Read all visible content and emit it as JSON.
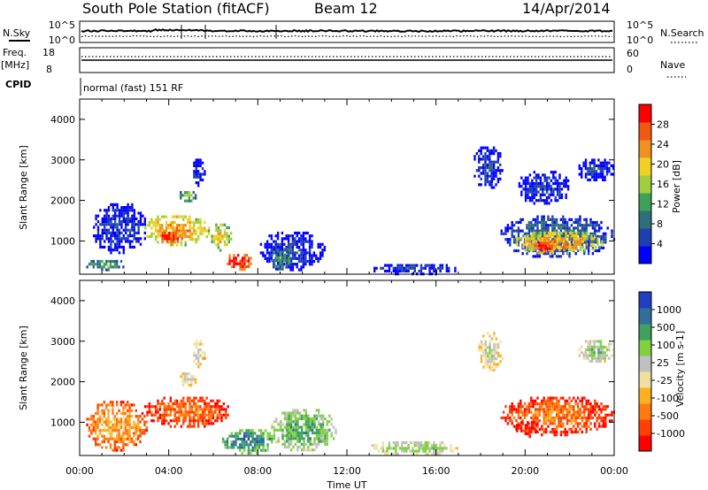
{
  "header": {
    "station": "South Pole Station (fitACF)",
    "beam": "Beam 12",
    "date": "14/Apr/2014"
  },
  "noise_panel": {
    "left_label": "N.Sky",
    "right_label": "N.Search",
    "left_ticks": [
      "10^5",
      "10^0"
    ],
    "right_ticks": [
      "10^5",
      "10^0"
    ]
  },
  "freq_panel": {
    "left_label_line1": "Freq.",
    "left_label_line2": "[MHz]",
    "right_label": "Nave",
    "left_ticks": [
      "18",
      "8"
    ],
    "right_ticks": [
      "60",
      "0"
    ]
  },
  "cpid": {
    "label": "CPID",
    "mode": "normal (fast) 151 RF"
  },
  "x_axis": {
    "label": "Time UT",
    "ticks": [
      "00:00",
      "04:00",
      "08:00",
      "12:00",
      "16:00",
      "20:00",
      "00:00"
    ]
  },
  "chart_data": [
    {
      "type": "heatmap",
      "panel": "power",
      "xlabel": "Time UT",
      "ylabel": "Slant Range [km]",
      "xlim_hours": [
        0,
        24
      ],
      "ylim_km": [
        180,
        4500
      ],
      "y_ticks": [
        1000,
        2000,
        3000,
        4000
      ],
      "colorbar": {
        "label": "Power [dB]",
        "ticks": [
          "28",
          "24",
          "20",
          "16",
          "12",
          "8",
          "4"
        ],
        "colors": [
          "#0000ff",
          "#1f3fb0",
          "#2f6f7a",
          "#3fa05a",
          "#9fcf3f",
          "#f0d020",
          "#f09020",
          "#f05a10",
          "#ff0000"
        ]
      },
      "regions": [
        {
          "t0": 2.8,
          "t1": 5.8,
          "r0": 900,
          "r1": 1700,
          "level": 6
        },
        {
          "t0": 3.5,
          "t1": 4.6,
          "r0": 950,
          "r1": 1300,
          "level": 8
        },
        {
          "t0": 5.8,
          "t1": 6.8,
          "r0": 800,
          "r1": 1500,
          "level": 5
        },
        {
          "t0": 6.5,
          "t1": 7.7,
          "r0": 300,
          "r1": 750,
          "level": 8
        },
        {
          "t0": 0.2,
          "t1": 2.0,
          "r0": 300,
          "r1": 600,
          "level": 3
        },
        {
          "t0": 0.5,
          "t1": 3.0,
          "r0": 700,
          "r1": 2000,
          "level": 1
        },
        {
          "t0": 4.4,
          "t1": 5.2,
          "r0": 2000,
          "r1": 2300,
          "level": 4
        },
        {
          "t0": 5.0,
          "t1": 5.6,
          "r0": 2400,
          "r1": 3100,
          "level": 1
        },
        {
          "t0": 8.0,
          "t1": 11.0,
          "r0": 300,
          "r1": 1300,
          "level": 1
        },
        {
          "t0": 8.5,
          "t1": 9.5,
          "r0": 300,
          "r1": 900,
          "level": 3
        },
        {
          "t0": 17.6,
          "t1": 19.0,
          "r0": 2300,
          "r1": 3400,
          "level": 1
        },
        {
          "t0": 18.8,
          "t1": 24.0,
          "r0": 600,
          "r1": 1700,
          "level": 2
        },
        {
          "t0": 19.5,
          "t1": 23.5,
          "r0": 700,
          "r1": 1300,
          "level": 6
        },
        {
          "t0": 20.3,
          "t1": 21.3,
          "r0": 750,
          "r1": 1050,
          "level": 8
        },
        {
          "t0": 22.3,
          "t1": 24.0,
          "r0": 2500,
          "r1": 3100,
          "level": 1
        },
        {
          "t0": 19.6,
          "t1": 22.0,
          "r0": 1900,
          "r1": 2800,
          "level": 1
        },
        {
          "t0": 13.0,
          "t1": 17.0,
          "r0": 200,
          "r1": 500,
          "level": 1
        }
      ]
    },
    {
      "type": "heatmap",
      "panel": "velocity",
      "xlabel": "Time UT",
      "ylabel": "Slant Range [km]",
      "xlim_hours": [
        0,
        24
      ],
      "ylim_km": [
        180,
        4500
      ],
      "y_ticks": [
        1000,
        2000,
        3000,
        4000
      ],
      "colorbar": {
        "label": "Velocity [m s-1]",
        "ticks": [
          "1000",
          "500",
          "100",
          "25",
          "-25",
          "-100",
          "-500",
          "-1000"
        ],
        "colors": [
          "#ff0000",
          "#ff4000",
          "#ff7a10",
          "#ffb020",
          "#f0e0a0",
          "#c0c0c0",
          "#80d040",
          "#40a060",
          "#2f6f9a",
          "#2040c0"
        ]
      },
      "regions": [
        {
          "t0": 2.8,
          "t1": 6.8,
          "r0": 900,
          "r1": 1700,
          "level": 2
        },
        {
          "t0": 0.2,
          "t1": 3.0,
          "r0": 300,
          "r1": 1600,
          "level": 3
        },
        {
          "t0": 4.4,
          "t1": 5.2,
          "r0": 1900,
          "r1": 2300,
          "level": 5
        },
        {
          "t0": 6.3,
          "t1": 8.8,
          "r0": 250,
          "r1": 900,
          "level": 8
        },
        {
          "t0": 8.5,
          "t1": 11.5,
          "r0": 300,
          "r1": 1400,
          "level": 7
        },
        {
          "t0": 5.0,
          "t1": 5.6,
          "r0": 2400,
          "r1": 3100,
          "level": 5
        },
        {
          "t0": 17.8,
          "t1": 19.0,
          "r0": 2300,
          "r1": 3300,
          "level": 5
        },
        {
          "t0": 18.8,
          "t1": 24.0,
          "r0": 700,
          "r1": 1700,
          "level": 2
        },
        {
          "t0": 19.5,
          "t1": 20.5,
          "r0": 650,
          "r1": 1100,
          "level": 1
        },
        {
          "t0": 22.3,
          "t1": 24.0,
          "r0": 2500,
          "r1": 3100,
          "level": 6
        },
        {
          "t0": 13.0,
          "t1": 17.0,
          "r0": 200,
          "r1": 600,
          "level": 6
        }
      ]
    }
  ]
}
